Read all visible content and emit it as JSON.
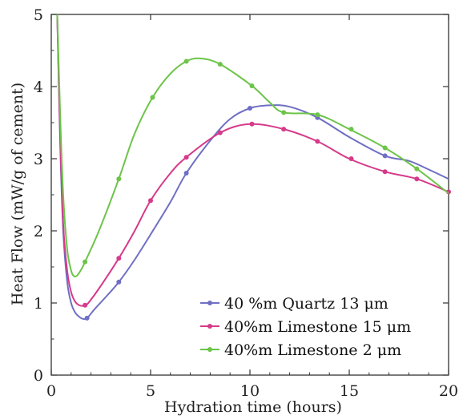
{
  "chart_data": {
    "type": "line",
    "title": "",
    "xlabel": "Hydration time (hours)",
    "ylabel": "Heat Flow (mW/g of cement)",
    "xlim": [
      0,
      20
    ],
    "ylim": [
      0,
      5
    ],
    "xticks": [
      0,
      5,
      10,
      15,
      20
    ],
    "yticks": [
      0,
      1,
      2,
      3,
      4,
      5
    ],
    "grid": false,
    "legend_position": "bottom-right",
    "series": [
      {
        "name": "40 %m Quartz 13 μm",
        "color": "#6f6fc4",
        "x": [
          0.3,
          0.45,
          0.6,
          0.8,
          1.0,
          1.2,
          1.4,
          1.6,
          1.8,
          2.2,
          2.8,
          3.4,
          4.2,
          5.0,
          6.0,
          6.8,
          8.0,
          9.0,
          10.0,
          11.0,
          12.0,
          13.4,
          15.0,
          16.8,
          18.0,
          19.0,
          20.0
        ],
        "y": [
          5.0,
          3.2,
          2.0,
          1.3,
          1.0,
          0.87,
          0.81,
          0.78,
          0.79,
          0.92,
          1.1,
          1.29,
          1.6,
          1.95,
          2.4,
          2.8,
          3.25,
          3.55,
          3.7,
          3.74,
          3.72,
          3.57,
          3.3,
          3.04,
          2.97,
          2.85,
          2.72
        ],
        "markers": [
          [
            1.8,
            0.79
          ],
          [
            3.4,
            1.29
          ],
          [
            6.8,
            2.8
          ],
          [
            10.0,
            3.7
          ],
          [
            13.4,
            3.57
          ],
          [
            16.8,
            3.04
          ]
        ]
      },
      {
        "name": "40%m Limestone 15 μm",
        "color": "#d63a8a",
        "x": [
          0.3,
          0.45,
          0.6,
          0.8,
          1.0,
          1.2,
          1.4,
          1.6,
          1.8,
          2.4,
          3.4,
          4.2,
          5.0,
          6.0,
          6.8,
          8.5,
          10.0,
          11.7,
          13.4,
          15.0,
          16.8,
          18.4,
          20.0
        ],
        "y": [
          5.0,
          3.3,
          2.1,
          1.45,
          1.15,
          1.02,
          0.97,
          0.96,
          0.98,
          1.2,
          1.62,
          2.0,
          2.42,
          2.8,
          3.02,
          3.36,
          3.48,
          3.41,
          3.24,
          3.0,
          2.82,
          2.72,
          2.54
        ],
        "markers": [
          [
            1.7,
            0.97
          ],
          [
            3.4,
            1.62
          ],
          [
            5.0,
            2.42
          ],
          [
            6.8,
            3.02
          ],
          [
            8.5,
            3.36
          ],
          [
            10.1,
            3.48
          ],
          [
            11.7,
            3.41
          ],
          [
            13.4,
            3.24
          ],
          [
            15.1,
            3.0
          ],
          [
            16.8,
            2.82
          ],
          [
            18.4,
            2.72
          ],
          [
            20.0,
            2.54
          ]
        ]
      },
      {
        "name": "40%m Limestone 2 μm",
        "color": "#6cc448",
        "x": [
          0.3,
          0.45,
          0.6,
          0.8,
          1.0,
          1.15,
          1.3,
          1.5,
          1.7,
          2.4,
          3.4,
          4.2,
          5.1,
          6.0,
          6.8,
          7.5,
          8.5,
          10.1,
          11.0,
          11.7,
          13.4,
          15.0,
          16.8,
          18.4,
          20.0
        ],
        "y": [
          5.0,
          3.6,
          2.5,
          1.75,
          1.45,
          1.37,
          1.38,
          1.46,
          1.57,
          2.0,
          2.72,
          3.35,
          3.85,
          4.18,
          4.35,
          4.39,
          4.31,
          4.01,
          3.78,
          3.64,
          3.61,
          3.41,
          3.15,
          2.86,
          2.52
        ],
        "markers": [
          [
            1.7,
            1.57
          ],
          [
            3.4,
            2.72
          ],
          [
            5.1,
            3.85
          ],
          [
            6.8,
            4.35
          ],
          [
            8.5,
            4.31
          ],
          [
            10.1,
            4.01
          ],
          [
            11.7,
            3.64
          ],
          [
            13.4,
            3.61
          ],
          [
            15.1,
            3.41
          ],
          [
            16.8,
            3.15
          ],
          [
            18.4,
            2.86
          ]
        ]
      }
    ]
  }
}
